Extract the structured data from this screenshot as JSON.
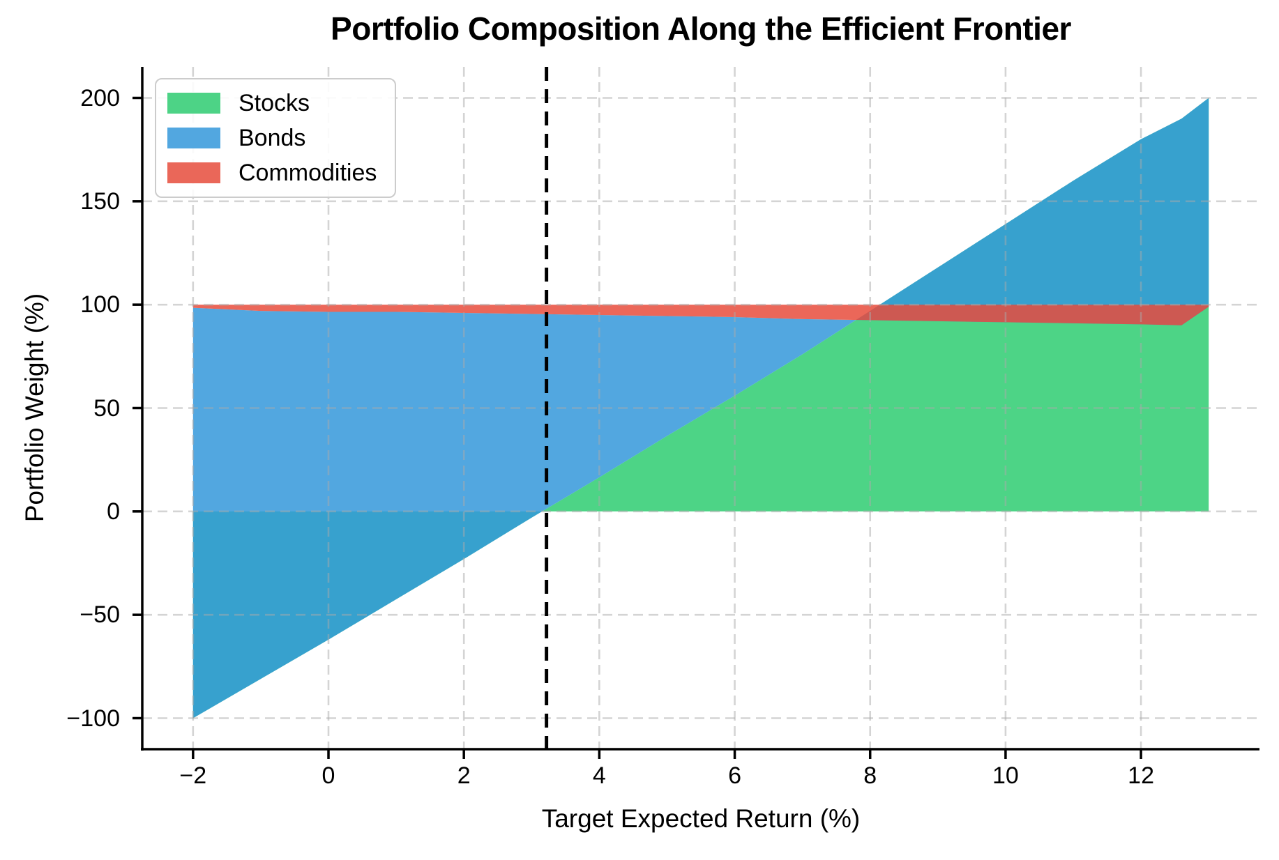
{
  "title": "Portfolio Composition Along the Efficient Frontier",
  "x_axis": {
    "label": "Target Expected Return (%)",
    "tick_values": [
      -2,
      0,
      2,
      4,
      6,
      8,
      10,
      12
    ],
    "tick_labels": [
      "−2",
      "0",
      "2",
      "4",
      "6",
      "8",
      "10",
      "12"
    ],
    "range": [
      -2.75,
      13.75
    ]
  },
  "y_axis": {
    "label": "Portfolio Weight (%)",
    "tick_values": [
      -100,
      -50,
      0,
      50,
      100,
      150,
      200
    ],
    "tick_labels": [
      "−100",
      "−50",
      "0",
      "50",
      "100",
      "150",
      "200"
    ],
    "range": [
      -115,
      215
    ]
  },
  "legend": {
    "items": [
      {
        "label": "Stocks",
        "swatch_color": "#4dd386"
      },
      {
        "label": "Bonds",
        "swatch_color": "#52a7e0"
      },
      {
        "label": "Commodities",
        "swatch_color": "#ea6759"
      }
    ]
  },
  "colors": {
    "grid": "#aaaaaa",
    "spine": "#000000",
    "vline": "#000000",
    "background": "#ffffff"
  },
  "chart_data": {
    "type": "area",
    "stacked": true,
    "title": "Portfolio Composition Along the Efficient Frontier",
    "xlabel": "Target Expected Return (%)",
    "ylabel": "Portfolio Weight (%)",
    "xlim": [
      -2.75,
      13.75
    ],
    "ylim": [
      -115,
      215
    ],
    "grid": true,
    "grid_style": "dashed",
    "legend_position": "upper left",
    "fill_alpha": 0.85,
    "x": [
      -2,
      -1,
      0,
      1,
      2,
      3,
      4,
      5,
      6,
      7,
      8,
      9,
      10,
      11,
      12,
      12.6,
      13
    ],
    "series": [
      {
        "name": "Stocks",
        "color": "#2ecc71",
        "values": [
          -100,
          -81,
          -62,
          -42.5,
          -23,
          -3,
          16.5,
          36.5,
          56,
          76,
          97,
          118,
          139,
          160,
          180,
          190,
          200
        ]
      },
      {
        "name": "Bonds",
        "color": "#3498db",
        "values": [
          198.5,
          178,
          158.5,
          139,
          119,
          98.5,
          78.5,
          58,
          38,
          17,
          -4.5,
          -26,
          -47.5,
          -69,
          -89.5,
          -100,
          -101
        ]
      },
      {
        "name": "Commodities",
        "color": "#e74c3c",
        "values": [
          1.5,
          3,
          3.5,
          3.5,
          4,
          4.5,
          5,
          5.5,
          6,
          7,
          7.5,
          8,
          8.5,
          9,
          9.5,
          10,
          1
        ]
      }
    ],
    "annotations": [
      {
        "type": "vline",
        "x": 3.22,
        "color": "#000000",
        "style": "dashed"
      }
    ]
  }
}
